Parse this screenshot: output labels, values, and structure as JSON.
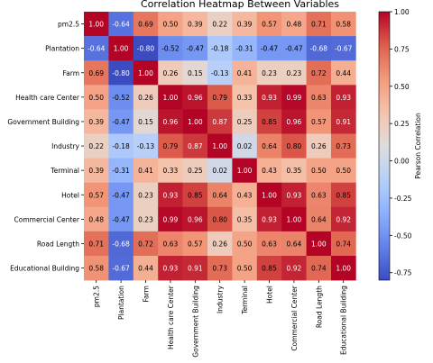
{
  "chart_data": {
    "type": "heatmap",
    "title": "Correlation Heatmap Between Variables",
    "variables": [
      "pm2.5",
      "Plantation",
      "Farm",
      "Health care Center",
      "Government Building",
      "Industry",
      "Terminal",
      "Hotel",
      "Commercial Center",
      "Road Length",
      "Educational Building"
    ],
    "values": [
      [
        1.0,
        -0.64,
        0.69,
        0.5,
        0.39,
        0.22,
        0.39,
        0.57,
        0.48,
        0.71,
        0.58
      ],
      [
        -0.64,
        1.0,
        -0.8,
        -0.52,
        -0.47,
        -0.18,
        -0.31,
        -0.47,
        -0.47,
        -0.68,
        -0.67
      ],
      [
        0.69,
        -0.8,
        1.0,
        0.26,
        0.15,
        -0.13,
        0.41,
        0.23,
        0.23,
        0.72,
        0.44
      ],
      [
        0.5,
        -0.52,
        0.26,
        1.0,
        0.96,
        0.79,
        0.33,
        0.93,
        0.99,
        0.63,
        0.93
      ],
      [
        0.39,
        -0.47,
        0.15,
        0.96,
        1.0,
        0.87,
        0.25,
        0.85,
        0.96,
        0.57,
        0.91
      ],
      [
        0.22,
        -0.18,
        -0.13,
        0.79,
        0.87,
        1.0,
        0.02,
        0.64,
        0.8,
        0.26,
        0.73
      ],
      [
        0.39,
        -0.31,
        0.41,
        0.33,
        0.25,
        0.02,
        1.0,
        0.43,
        0.35,
        0.5,
        0.5
      ],
      [
        0.57,
        -0.47,
        0.23,
        0.93,
        0.85,
        0.64,
        0.43,
        1.0,
        0.93,
        0.63,
        0.85
      ],
      [
        0.48,
        -0.47,
        0.23,
        0.99,
        0.96,
        0.8,
        0.35,
        0.93,
        1.0,
        0.64,
        0.92
      ],
      [
        0.71,
        -0.68,
        0.72,
        0.63,
        0.57,
        0.26,
        0.5,
        0.63,
        0.64,
        1.0,
        0.74
      ],
      [
        0.58,
        -0.67,
        0.44,
        0.93,
        0.91,
        0.73,
        0.5,
        0.85,
        0.92,
        0.74,
        1.0
      ]
    ],
    "colorbar": {
      "label": "Pearson Correlation",
      "vmin": -0.8,
      "vmax": 1.0,
      "ticks": [
        1.0,
        0.75,
        0.5,
        0.25,
        0.0,
        -0.25,
        -0.5,
        -0.75
      ],
      "colormap": "coolwarm"
    },
    "annotation_dark_color": "#000000",
    "annotation_light_color": "#ffffff"
  }
}
